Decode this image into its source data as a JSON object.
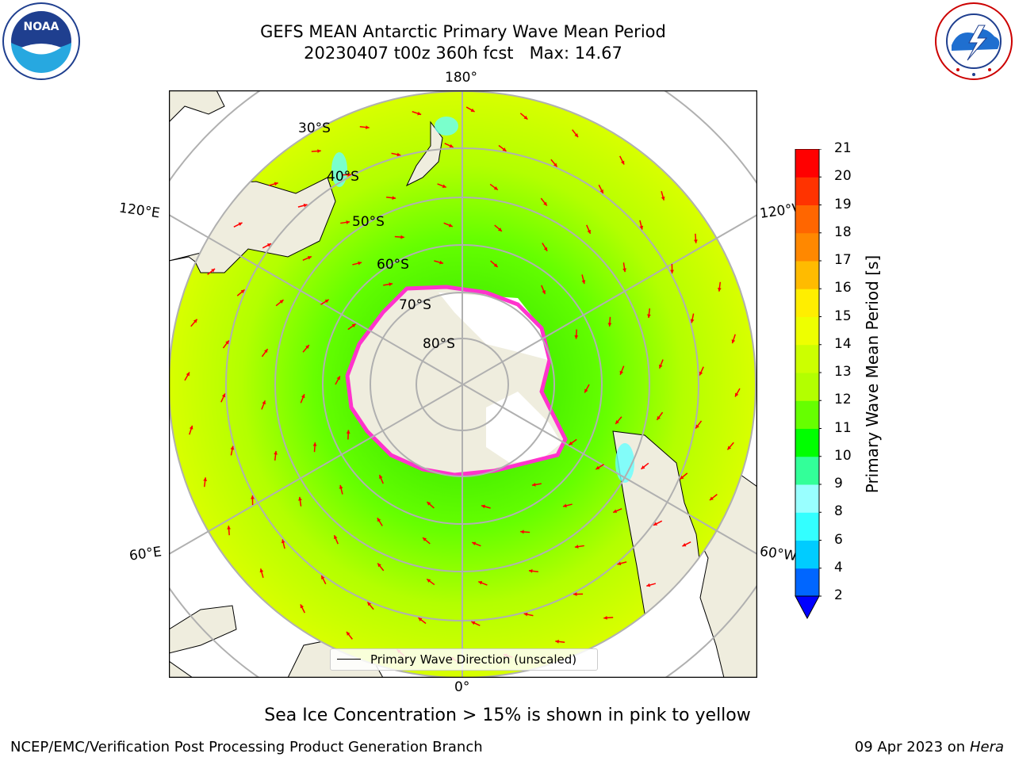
{
  "title": {
    "line1": "GEFS MEAN Antarctic Primary Wave Mean Period",
    "line2": "20230407 t00z 360h fcst   Max: 14.67"
  },
  "map": {
    "projection": "south polar stereographic",
    "lon_labels": [
      "180°",
      "120°E",
      "120°W",
      "60°E",
      "60°W",
      "0°"
    ],
    "lat_labels": [
      "30°S",
      "40°S",
      "50°S",
      "60°S",
      "70°S",
      "80°S"
    ],
    "legend_label": "Primary Wave Direction (unscaled)",
    "colors": {
      "land": "#efedde",
      "sea_ice": "#ffffff",
      "ice_edge": "#ff33cc",
      "arrow": "#ff0000"
    }
  },
  "colorbar": {
    "label": "Primary Wave Mean Period [s]",
    "ticks": [
      "2",
      "4",
      "6",
      "8",
      "9",
      "10",
      "11",
      "12",
      "13",
      "14",
      "15",
      "16",
      "17",
      "18",
      "19",
      "20",
      "21"
    ],
    "colors": [
      "#0066ff",
      "#00ccff",
      "#33ffff",
      "#99ffff",
      "#33ff99",
      "#00ff00",
      "#66ff00",
      "#b3ff00",
      "#ccff00",
      "#eeff00",
      "#ffee00",
      "#ffbb00",
      "#ff8800",
      "#ff6600",
      "#ff3300",
      "#ff0000"
    ],
    "extend_color": "#0000ff"
  },
  "caption": "Sea Ice Concentration > 15% is shown in pink to yellow",
  "footer": {
    "left": "NCEP/EMC/Verification Post Processing Product Generation Branch",
    "right_date": "09 Apr 2023 on ",
    "right_machine": "Hera"
  },
  "logos": {
    "left": "noaa-logo",
    "right": "national-weather-service-logo"
  }
}
